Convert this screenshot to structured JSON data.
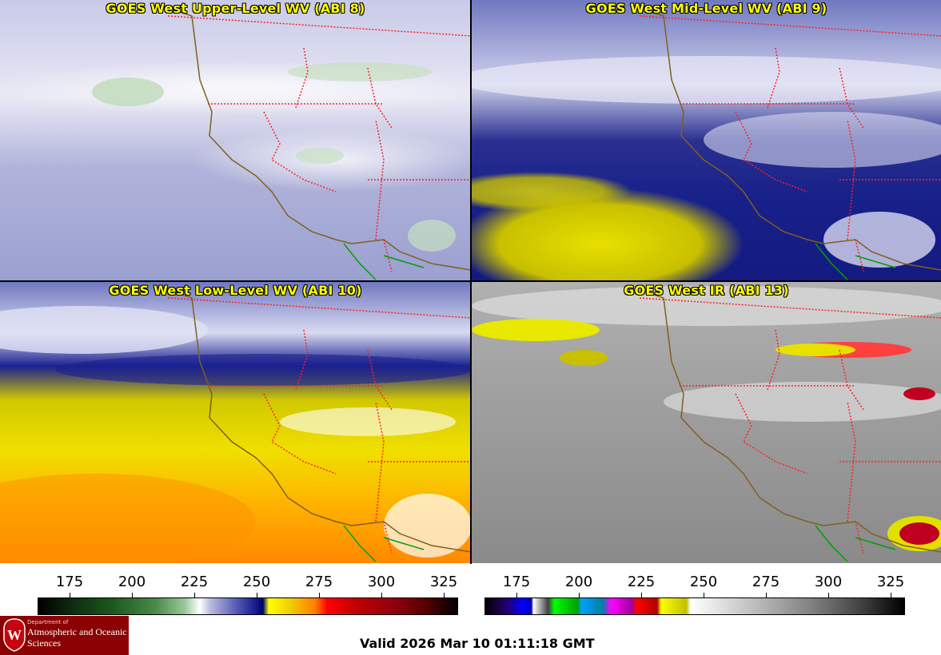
{
  "panels": [
    {
      "title": "GOES West Upper-Level WV (ABI 8)"
    },
    {
      "title": "GOES West Mid-Level WV (ABI 9)"
    },
    {
      "title": "GOES West Low-Level WV (ABI 10)"
    },
    {
      "title": "GOES West IR (ABI 13)"
    }
  ],
  "colorbars": [
    {
      "ticks": [
        "175",
        "200",
        "225",
        "250",
        "275",
        "300",
        "325"
      ],
      "icon": "wv-colorbar"
    },
    {
      "ticks": [
        "175",
        "200",
        "225",
        "250",
        "275",
        "300",
        "325"
      ],
      "icon": "ir-colorbar"
    }
  ],
  "valid_time": "Valid 2026 Mar 10 01:11:18 GMT",
  "logo": {
    "line1": "Department of",
    "line2": "Atmospheric and Oceanic Sciences",
    "icon": "uw-crest-icon"
  },
  "colors": {
    "title": "#ffff00",
    "state_borders": "#ff2020",
    "coastline": "#806020",
    "mexico": "#00a000"
  }
}
